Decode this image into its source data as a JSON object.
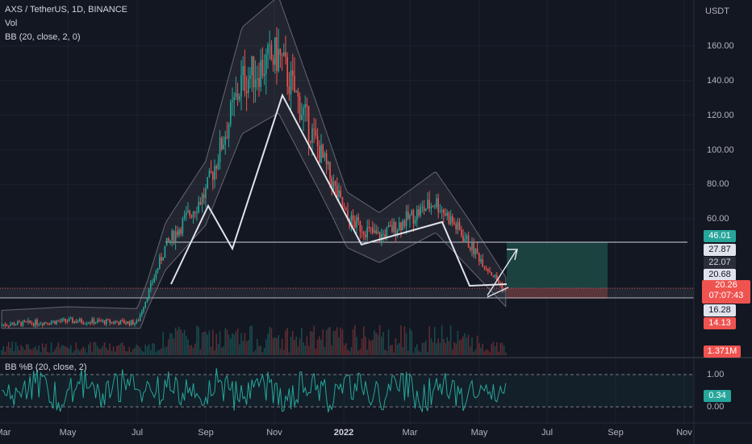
{
  "header": {
    "symbol": "AXS / TetherUS, 1D, BINANCE",
    "vol": "Vol",
    "bb": "BB (20, close, 2, 0)",
    "bbp": "BB %B (20, close, 2)"
  },
  "axis": {
    "currency": "USDT",
    "price_ticks": [
      "160.00",
      "140.00",
      "120.00",
      "100.00",
      "80.00",
      "60.00"
    ],
    "osc_ticks": [
      "1.00",
      "0.00"
    ],
    "time_ticks": [
      "Mar",
      "May",
      "Jul",
      "Sep",
      "Nov",
      "2022",
      "Mar",
      "May",
      "Jul",
      "Sep",
      "Nov"
    ]
  },
  "price_labels": {
    "p46": "46.01",
    "p27": "27.87",
    "p22": "22.07",
    "p20": "20.68",
    "current": "20.26",
    "countdown": "07:07:43",
    "p16": "16.28",
    "p14": "14.13",
    "volume": "1.371M",
    "bbp_value": "0.34"
  },
  "colors": {
    "background": "#131722",
    "up": "#26a69a",
    "down": "#ef5350",
    "pattern": "#d1d4dc",
    "profit_zone": "#1f4a45",
    "loss_zone": "#5a2a2e",
    "oscillator": "#26a69a"
  },
  "chart_data": {
    "type": "candlestick",
    "symbol": "AXS / TetherUS",
    "interval": "1D",
    "current_price": 20.26,
    "key_levels": [
      46.01,
      27.87,
      22.07,
      20.68,
      16.28,
      14.13
    ],
    "approx_trend": [
      {
        "x": "Mar",
        "y": 3
      },
      {
        "x": "May",
        "y": 5
      },
      {
        "x": "Jul",
        "y": 4
      },
      {
        "x": "Aug",
        "y": 45
      },
      {
        "x": "Sep",
        "y": 75
      },
      {
        "x": "Oct",
        "y": 140
      },
      {
        "x": "Nov",
        "y": 155
      },
      {
        "x": "Dec",
        "y": 100
      },
      {
        "x": "2022",
        "y": 60
      },
      {
        "x": "Mar",
        "y": 50
      },
      {
        "x": "Apr",
        "y": 70
      },
      {
        "x": "May",
        "y": 20
      }
    ]
  }
}
